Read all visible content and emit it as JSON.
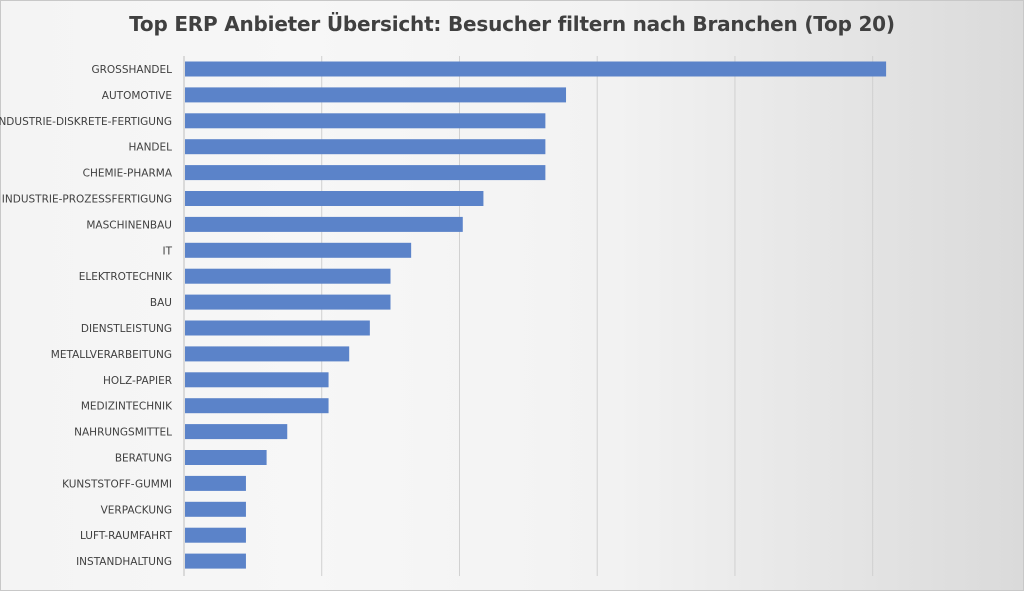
{
  "chart_data": {
    "type": "bar",
    "orientation": "horizontal",
    "title": "Top ERP Anbieter Übersicht: Besucher filtern nach Branchen (Top 20)",
    "xlabel": "",
    "ylabel": "",
    "categories": [
      "GROSSHANDEL",
      "AUTOMOTIVE",
      "INDUSTRIE-DISKRETE-FERTIGUNG",
      "HANDEL",
      "CHEMIE-PHARMA",
      "INDUSTRIE-PROZESSFERTIGUNG",
      "MASCHINENBAU",
      "IT",
      "ELEKTROTECHNIK",
      "BAU",
      "DIENSTLEISTUNG",
      "METALLVERARBEITUNG",
      "HOLZ-PAPIER",
      "MEDIZINTECHNIK",
      "NAHRUNGSMITTEL",
      "BERATUNG",
      "KUNSTSTOFF-GUMMI",
      "VERPACKUNG",
      "LUFT-RAUMFAHRT",
      "INSTANDHALTUNG"
    ],
    "values": [
      34,
      18.5,
      17.5,
      17.5,
      17.5,
      14.5,
      13.5,
      11,
      10,
      10,
      9,
      8,
      7,
      7,
      5,
      4,
      3,
      3,
      3,
      3
    ],
    "xlim": [
      0,
      40
    ],
    "x_gridline_step": 6.67,
    "x_ticks_shown": false,
    "grid": true,
    "legend": "none",
    "bar_color": "#5b83c9"
  }
}
